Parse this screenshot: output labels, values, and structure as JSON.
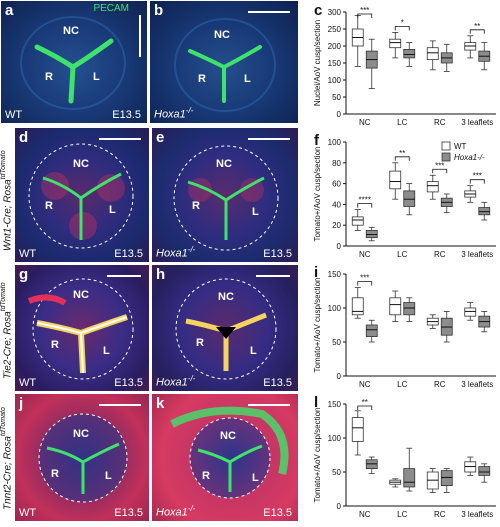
{
  "panels": {
    "a": {
      "letter": "a",
      "marker": "PECAM",
      "genotype": "WT",
      "stage": "E13.5",
      "regions": [
        "NC",
        "R",
        "L"
      ]
    },
    "b": {
      "letter": "b",
      "genotype": "Hoxa1",
      "genotype_sup": "-/-",
      "regions": [
        "NC",
        "R",
        "L"
      ]
    },
    "d": {
      "letter": "d",
      "genotype": "WT",
      "stage": "E13.5",
      "regions": [
        "NC",
        "R",
        "L"
      ]
    },
    "e": {
      "letter": "e",
      "genotype": "Hoxa1",
      "genotype_sup": "-/-",
      "stage": "E13.5",
      "regions": [
        "NC",
        "R",
        "L"
      ]
    },
    "g": {
      "letter": "g",
      "genotype": "WT",
      "stage": "E13.5",
      "regions": [
        "NC",
        "R",
        "L"
      ]
    },
    "h": {
      "letter": "h",
      "genotype": "Hoxa1",
      "genotype_sup": "-/-",
      "stage": "E13.5",
      "regions": [
        "NC",
        "R",
        "L"
      ]
    },
    "j": {
      "letter": "j",
      "genotype": "WT",
      "stage": "E13.5",
      "regions": [
        "NC",
        "R",
        "L"
      ]
    },
    "k": {
      "letter": "k",
      "genotype": "Hoxa1",
      "genotype_sup": "-/-",
      "stage": "E13.5",
      "regions": [
        "NC",
        "R",
        "L"
      ]
    }
  },
  "row_labels": {
    "d": {
      "main": "Wnt1-Cre; Rosa",
      "sup": "tdTomato"
    },
    "g": {
      "main": "Tie2-Cre; Rosa",
      "sup": "tdTomato"
    },
    "j": {
      "main": "Tnnt2-Cre; Rosa",
      "sup": "tdTomato"
    }
  },
  "colors": {
    "wt_box": "#ffffff",
    "ko_box": "#8c8c8c",
    "pecam": "#3de36a",
    "tomato": "#e0315a",
    "dapi": "#1c3a8c"
  },
  "chart_data": [
    {
      "letter": "c",
      "type": "box",
      "ylabel": "Nuclei/AoV cusp/section",
      "categories": [
        "NC",
        "LC",
        "RC",
        "3 leaflets"
      ],
      "ylim": [
        0,
        300
      ],
      "yticks": [
        0,
        50,
        100,
        150,
        200,
        250,
        300
      ],
      "significance": [
        "***",
        "*",
        "",
        "**"
      ],
      "series": [
        {
          "name": "WT",
          "boxes": [
            [
              140,
              200,
              225,
              250,
              290
            ],
            [
              165,
              195,
              210,
              220,
              240
            ],
            [
              130,
              160,
              180,
              195,
              215
            ],
            [
              165,
              188,
              200,
              210,
              230
            ]
          ]
        },
        {
          "name": "Hoxa1-/-",
          "boxes": [
            [
              75,
              135,
              160,
              185,
              220
            ],
            [
              140,
              165,
              175,
              190,
              210
            ],
            [
              125,
              150,
              165,
              180,
              205
            ],
            [
              130,
              155,
              170,
              185,
              210
            ]
          ]
        }
      ]
    },
    {
      "letter": "f",
      "type": "box",
      "ylabel": "Tomato+/AoV cusp/section",
      "categories": [
        "NC",
        "LC",
        "RC",
        "3 leaflets"
      ],
      "ylim": [
        0,
        100
      ],
      "yticks": [
        0,
        20,
        40,
        60,
        80,
        100
      ],
      "legend": [
        "WT",
        "Hoxa1-/-"
      ],
      "significance": [
        "****",
        "**",
        "***",
        "***"
      ],
      "series": [
        {
          "name": "WT",
          "boxes": [
            [
              15,
              20,
              25,
              28,
              35
            ],
            [
              45,
              55,
              62,
              72,
              80
            ],
            [
              45,
              52,
              58,
              62,
              68
            ],
            [
              42,
              47,
              50,
              53,
              58
            ]
          ]
        },
        {
          "name": "Hoxa1-/-",
          "boxes": [
            [
              5,
              8,
              11,
              15,
              18
            ],
            [
              30,
              38,
              45,
              53,
              60
            ],
            [
              32,
              38,
              42,
              46,
              50
            ],
            [
              25,
              30,
              33,
              37,
              42
            ]
          ]
        }
      ]
    },
    {
      "letter": "i",
      "type": "box",
      "ylabel": "Tomato+/AoV cusp/section",
      "categories": [
        "NC",
        "LC",
        "RC",
        "3 leaflets"
      ],
      "ylim": [
        0,
        150
      ],
      "yticks": [
        0,
        50,
        100,
        150
      ],
      "significance": [
        "***",
        "",
        "",
        ""
      ],
      "series": [
        {
          "name": "WT",
          "boxes": [
            [
              85,
              90,
              95,
              115,
              130
            ],
            [
              80,
              90,
              105,
              115,
              125
            ],
            [
              70,
              75,
              80,
              85,
              90
            ],
            [
              82,
              88,
              95,
              100,
              108
            ]
          ]
        },
        {
          "name": "Hoxa1-/-",
          "boxes": [
            [
              50,
              58,
              68,
              75,
              82
            ],
            [
              80,
              90,
              100,
              108,
              115
            ],
            [
              50,
              60,
              72,
              85,
              95
            ],
            [
              65,
              72,
              80,
              88,
              95
            ]
          ]
        }
      ]
    },
    {
      "letter": "l",
      "type": "box",
      "ylabel": "Tomato+/AoV cusp/section",
      "categories": [
        "NC",
        "LC",
        "RC",
        "3 leaflets"
      ],
      "ylim": [
        0,
        150
      ],
      "yticks": [
        0,
        50,
        100,
        150
      ],
      "significance": [
        "**",
        "",
        "",
        ""
      ],
      "series": [
        {
          "name": "WT",
          "boxes": [
            [
              75,
              95,
              115,
              130,
              140
            ],
            [
              28,
              32,
              35,
              38,
              40
            ],
            [
              20,
              25,
              38,
              50,
              55
            ],
            [
              45,
              50,
              58,
              65,
              72
            ]
          ]
        },
        {
          "name": "Hoxa1-/-",
          "boxes": [
            [
              48,
              55,
              62,
              68,
              72
            ],
            [
              22,
              28,
              35,
              55,
              85
            ],
            [
              20,
              30,
              42,
              52,
              55
            ],
            [
              35,
              45,
              50,
              58,
              62
            ]
          ]
        }
      ]
    }
  ]
}
